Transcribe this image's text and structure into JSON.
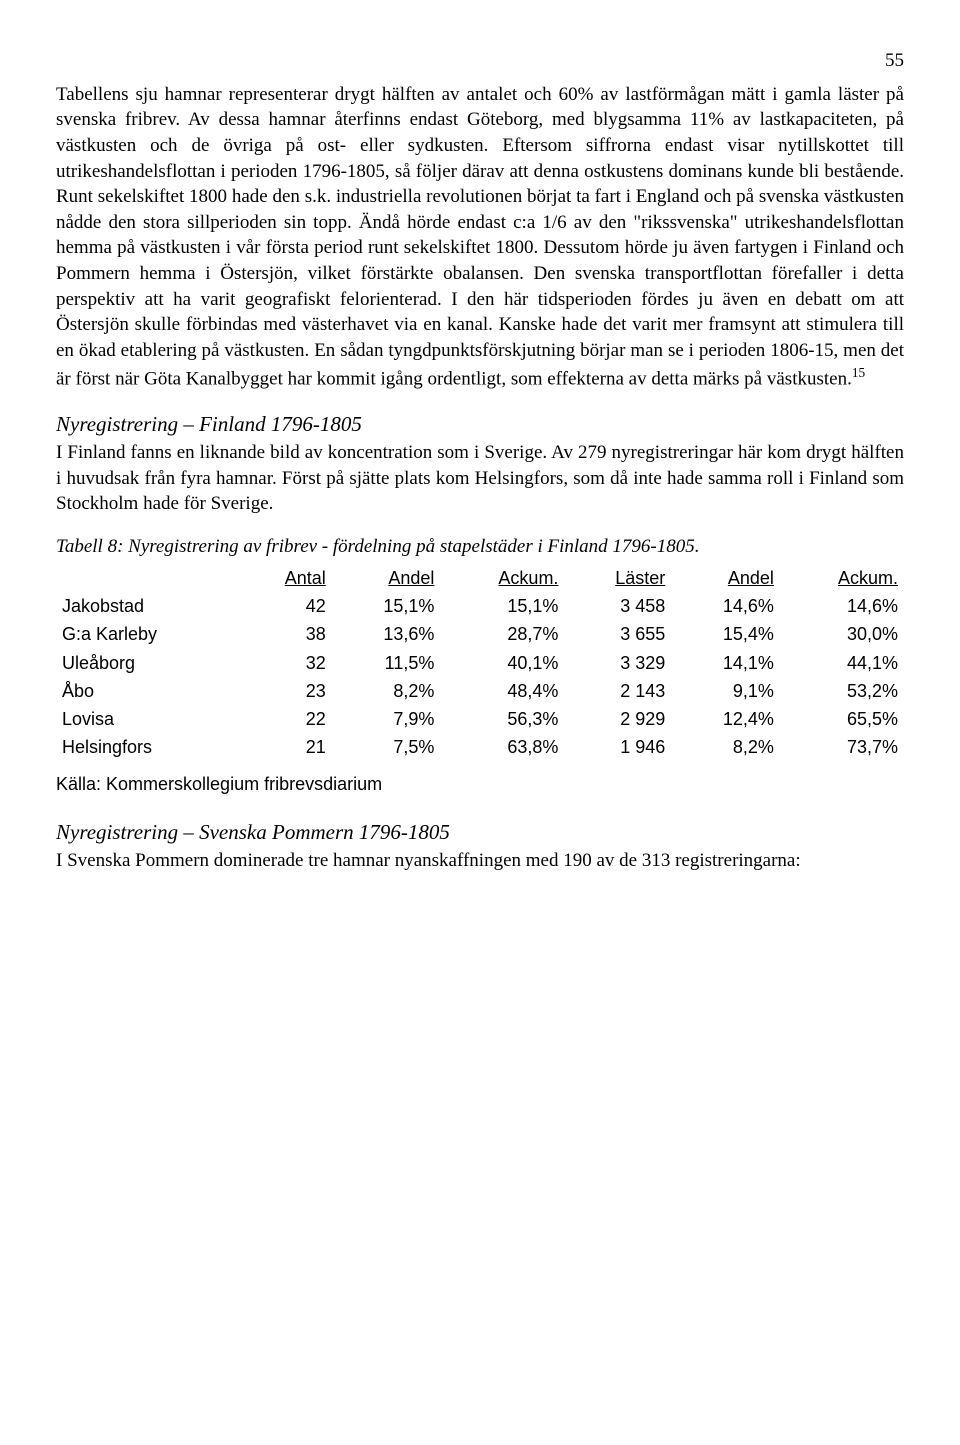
{
  "page_number": "55",
  "para1": "Tabellens sju hamnar representerar drygt hälften av antalet och 60% av lastförmågan mätt i gamla läster på svenska fribrev. Av dessa hamnar återfinns endast Göteborg, med blygsamma 11% av lastkapaciteten, på västkusten och de övriga på ost- eller sydkusten. Eftersom siffrorna endast visar nytillskottet till utrikeshandelsflottan i perioden 1796-1805, så följer därav att denna ostkustens dominans kunde bli bestående. Runt sekelskiftet 1800 hade den s.k. industriella revolutionen börjat ta fart i England och på svenska västkusten nådde den stora sillperioden sin topp. Ändå hörde endast c:a 1/6 av den \"rikssvenska\" utrikeshandelsflottan hemma på västkusten i vår första period runt sekelskiftet 1800. Dessutom hörde ju även fartygen i Finland och Pommern hemma i Östersjön, vilket förstärkte obalansen. Den svenska transportflottan förefaller i detta perspektiv att ha varit geografiskt felorienterad. I den här tidsperioden fördes ju även en debatt om att Östersjön skulle förbindas med västerhavet via en kanal. Kanske hade det varit mer framsynt att stimulera till en ökad etablering på västkusten. En sådan tyngdpunktsförskjutning börjar man se i perioden 1806-15, men det är först när Göta Kanalbygget har kommit igång ordentligt, som effekterna av detta märks på västkusten.",
  "footnote_ref": "15",
  "heading1": "Nyregistrering – Finland 1796-1805",
  "para2": "I Finland fanns en liknande bild av koncentration som i Sverige. Av 279 nyregistreringar här kom drygt hälften i huvudsak från fyra hamnar. Först på sjätte plats kom Helsingfors, som då inte hade samma roll i Finland som Stockholm hade för Sverige.",
  "table_caption": "Tabell 8: Nyregistrering av fribrev - fördelning på stapelstäder i Finland 1796-1805.",
  "table": {
    "type": "table",
    "font_family": "Arial",
    "font_size": 18,
    "columns": [
      "",
      "Antal",
      "Andel",
      "Ackum.",
      "Läster",
      "Andel",
      "Ackum."
    ],
    "rows": [
      [
        "Jakobstad",
        "42",
        "15,1%",
        "15,1%",
        "3 458",
        "14,6%",
        "14,6%"
      ],
      [
        "G:a Karleby",
        "38",
        "13,6%",
        "28,7%",
        "3 655",
        "15,4%",
        "30,0%"
      ],
      [
        "Uleåborg",
        "32",
        "11,5%",
        "40,1%",
        "3 329",
        "14,1%",
        "44,1%"
      ],
      [
        "Åbo",
        "23",
        "8,2%",
        "48,4%",
        "2 143",
        "9,1%",
        "53,2%"
      ],
      [
        "Lovisa",
        "22",
        "7,9%",
        "56,3%",
        "2 929",
        "12,4%",
        "65,5%"
      ],
      [
        "Helsingfors",
        "21",
        "7,5%",
        "63,8%",
        "1 946",
        "8,2%",
        "73,7%"
      ]
    ],
    "col_align": [
      "left",
      "right",
      "right",
      "right",
      "right",
      "right",
      "right"
    ]
  },
  "source_note": "Källa: Kommerskollegium fribrevsdiarium",
  "heading2": "Nyregistrering – Svenska Pommern 1796-1805",
  "para3": "I Svenska Pommern dominerade tre hamnar nyanskaffningen med 190 av de 313 registreringarna:"
}
